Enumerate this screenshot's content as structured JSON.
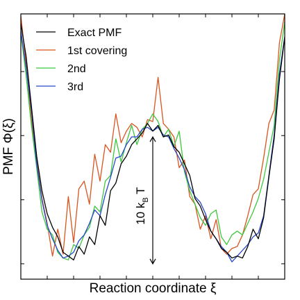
{
  "chart_data": {
    "type": "line",
    "xlabel": "Reaction coordinate ξ",
    "ylabel": "PMF Φ(ξ)",
    "xlim": [
      0,
      100
    ],
    "ylim": [
      -0.8,
      13.0
    ],
    "grid": false,
    "xticks": [
      10,
      20,
      30,
      40,
      50,
      60,
      70,
      80,
      90
    ],
    "yticks": [
      0,
      3.33,
      6.67,
      10
    ],
    "legend_position": "top-left",
    "annotation": {
      "text": "10 k",
      "subscript": "B",
      "suffix": " T",
      "x": 50,
      "y_from": 0,
      "y_to": 6.6
    },
    "series": [
      {
        "name": "Exact PMF",
        "color": "#000000",
        "x": [
          0,
          2,
          4,
          6,
          8,
          10,
          12,
          14,
          16,
          18,
          20,
          22,
          24,
          26,
          28,
          30,
          32,
          34,
          36,
          38,
          40,
          42,
          44,
          46,
          48,
          50,
          52,
          54,
          56,
          58,
          60,
          62,
          64,
          66,
          68,
          70,
          72,
          74,
          76,
          78,
          80,
          82,
          84,
          86,
          88,
          90,
          92,
          94,
          96,
          98,
          100
        ],
        "values": [
          12.5,
          10.8,
          8.2,
          5.6,
          3.8,
          2.6,
          1.9,
          1.4,
          0.6,
          0.4,
          0.2,
          0.9,
          0.5,
          1.4,
          1.0,
          2.5,
          2.0,
          3.8,
          4.2,
          5.2,
          5.6,
          6.2,
          6.5,
          6.8,
          7.3,
          6.9,
          7.2,
          6.6,
          6.7,
          6.1,
          5.8,
          5.2,
          4.6,
          3.4,
          3.0,
          2.3,
          1.7,
          1.3,
          0.8,
          0.6,
          0.3,
          0.4,
          0.3,
          0.9,
          1.8,
          1.3,
          2.4,
          4.5,
          6.5,
          9.6,
          11.8
        ]
      },
      {
        "name": "1st covering",
        "color": "#d9541e",
        "x": [
          0,
          2,
          4,
          6,
          8,
          10,
          12,
          14,
          16,
          18,
          20,
          22,
          24,
          26,
          28,
          30,
          32,
          34,
          36,
          38,
          40,
          42,
          44,
          46,
          48,
          50,
          52,
          54,
          56,
          58,
          60,
          62,
          64,
          66,
          68,
          70,
          72,
          74,
          76,
          78,
          80,
          82,
          84,
          86,
          88,
          90,
          92,
          94,
          96,
          98,
          100
        ],
        "values": [
          12.9,
          10.4,
          7.5,
          5.3,
          3.4,
          2.1,
          0.4,
          1.8,
          0.5,
          3.5,
          1.1,
          3.9,
          4.3,
          3.1,
          5.7,
          4.3,
          6.2,
          5.8,
          7.8,
          6.3,
          6.9,
          7.3,
          7.1,
          6.6,
          7.5,
          7.4,
          9.7,
          7.3,
          7.0,
          6.6,
          5.0,
          5.4,
          3.5,
          3.1,
          1.8,
          2.5,
          1.3,
          2.3,
          0.8,
          0.5,
          0.8,
          0.9,
          1.5,
          2.5,
          3.6,
          3.9,
          5.5,
          7.3,
          8.0,
          11.5,
          13.0
        ]
      },
      {
        "name": "2nd",
        "color": "#3cc83c",
        "x": [
          0,
          2,
          4,
          6,
          8,
          10,
          12,
          14,
          16,
          18,
          20,
          22,
          24,
          26,
          28,
          30,
          32,
          34,
          36,
          38,
          40,
          42,
          44,
          46,
          48,
          50,
          52,
          54,
          56,
          58,
          60,
          62,
          64,
          66,
          68,
          70,
          72,
          74,
          76,
          78,
          80,
          82,
          84,
          86,
          88,
          90,
          92,
          94,
          96,
          98,
          100
        ],
        "values": [
          12.0,
          9.8,
          7.2,
          5.0,
          2.7,
          1.8,
          1.5,
          0.6,
          0.3,
          0.2,
          1.0,
          0.8,
          1.5,
          1.9,
          3.0,
          2.7,
          4.3,
          4.6,
          6.5,
          5.3,
          6.3,
          7.2,
          6.2,
          7.0,
          7.3,
          7.8,
          7.4,
          6.6,
          7.0,
          6.1,
          6.9,
          4.8,
          3.8,
          3.1,
          2.4,
          2.0,
          2.6,
          2.8,
          1.4,
          1.0,
          1.5,
          1.7,
          1.5,
          2.1,
          2.7,
          3.4,
          4.4,
          5.8,
          7.2,
          10.6,
          12.6
        ]
      },
      {
        "name": "3rd",
        "color": "#2646c8",
        "x": [
          0,
          2,
          4,
          6,
          8,
          10,
          12,
          14,
          16,
          18,
          20,
          22,
          24,
          26,
          28,
          30,
          32,
          34,
          36,
          38,
          40,
          42,
          44,
          46,
          48,
          50,
          52,
          54,
          56,
          58,
          60,
          62,
          64,
          66,
          68,
          70,
          72,
          74,
          76,
          78,
          80,
          82,
          84,
          86,
          88,
          90,
          92,
          94,
          96,
          98,
          100
        ],
        "values": [
          12.1,
          10.2,
          8.0,
          5.2,
          3.3,
          2.0,
          1.3,
          0.7,
          0.3,
          0.4,
          0.6,
          1.2,
          1.5,
          2.1,
          2.8,
          2.5,
          3.6,
          4.5,
          5.5,
          5.6,
          6.2,
          6.6,
          6.6,
          7.0,
          7.1,
          6.9,
          7.1,
          6.7,
          6.6,
          6.0,
          5.5,
          4.9,
          4.0,
          3.5,
          3.2,
          2.6,
          1.7,
          1.3,
          0.9,
          0.6,
          0.1,
          0.4,
          0.7,
          1.0,
          1.4,
          1.6,
          2.5,
          4.6,
          6.7,
          9.9,
          11.8
        ]
      }
    ]
  }
}
